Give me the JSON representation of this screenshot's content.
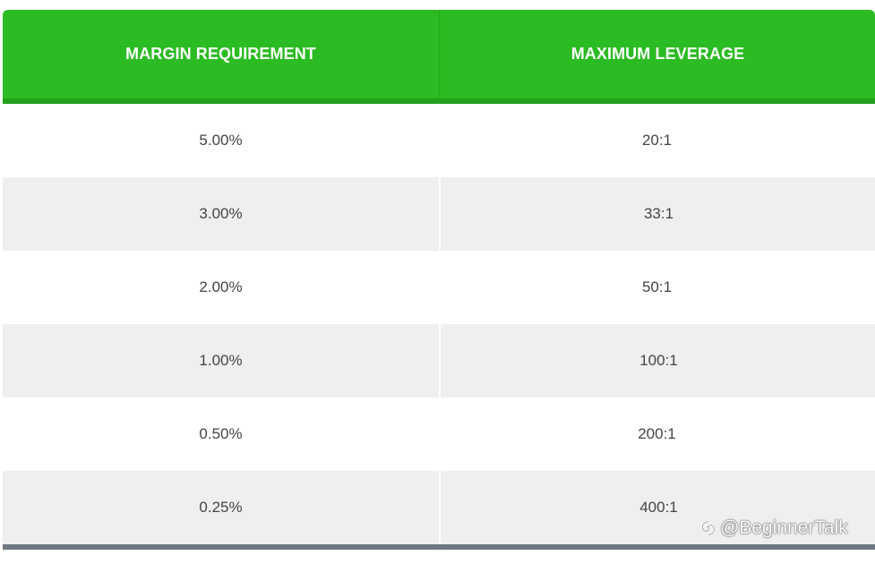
{
  "table": {
    "headers": [
      "MARGIN REQUIREMENT",
      "MAXIMUM LEVERAGE"
    ],
    "rows": [
      [
        "5.00%",
        "20:1"
      ],
      [
        "3.00%",
        "33:1"
      ],
      [
        "2.00%",
        "50:1"
      ],
      [
        "1.00%",
        "100:1"
      ],
      [
        "0.50%",
        "200:1"
      ],
      [
        "0.25%",
        "400:1"
      ]
    ]
  },
  "watermark": {
    "text": "@BeginnerTalk",
    "icon": "swirl-logo-icon"
  },
  "colors": {
    "header_bg": "#2bbb22",
    "header_text": "#ffffff",
    "row_alt_bg": "#efefef",
    "footer_bar": "#6e7680"
  }
}
